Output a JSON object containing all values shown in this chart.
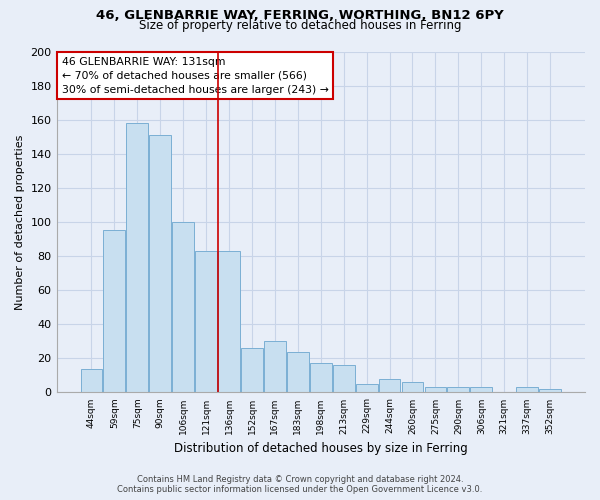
{
  "title": "46, GLENBARRIE WAY, FERRING, WORTHING, BN12 6PY",
  "subtitle": "Size of property relative to detached houses in Ferring",
  "xlabel": "Distribution of detached houses by size in Ferring",
  "ylabel": "Number of detached properties",
  "categories": [
    "44sqm",
    "59sqm",
    "75sqm",
    "90sqm",
    "106sqm",
    "121sqm",
    "136sqm",
    "152sqm",
    "167sqm",
    "183sqm",
    "198sqm",
    "213sqm",
    "229sqm",
    "244sqm",
    "260sqm",
    "275sqm",
    "290sqm",
    "306sqm",
    "321sqm",
    "337sqm",
    "352sqm"
  ],
  "values": [
    14,
    95,
    158,
    151,
    100,
    83,
    83,
    26,
    30,
    24,
    17,
    16,
    5,
    8,
    6,
    3,
    3,
    3,
    0,
    3,
    2
  ],
  "bar_color": "#c8dff0",
  "bar_edge_color": "#7bafd4",
  "highlight_bar_index": 6,
  "highlight_line_color": "#cc0000",
  "ylim": [
    0,
    200
  ],
  "yticks": [
    0,
    20,
    40,
    60,
    80,
    100,
    120,
    140,
    160,
    180,
    200
  ],
  "annotation_title": "46 GLENBARRIE WAY: 131sqm",
  "annotation_line1": "← 70% of detached houses are smaller (566)",
  "annotation_line2": "30% of semi-detached houses are larger (243) →",
  "annotation_box_color": "#ffffff",
  "annotation_border_color": "#cc0000",
  "footer_line1": "Contains HM Land Registry data © Crown copyright and database right 2024.",
  "footer_line2": "Contains public sector information licensed under the Open Government Licence v3.0.",
  "background_color": "#e8eef8",
  "grid_color": "#c8d4e8"
}
